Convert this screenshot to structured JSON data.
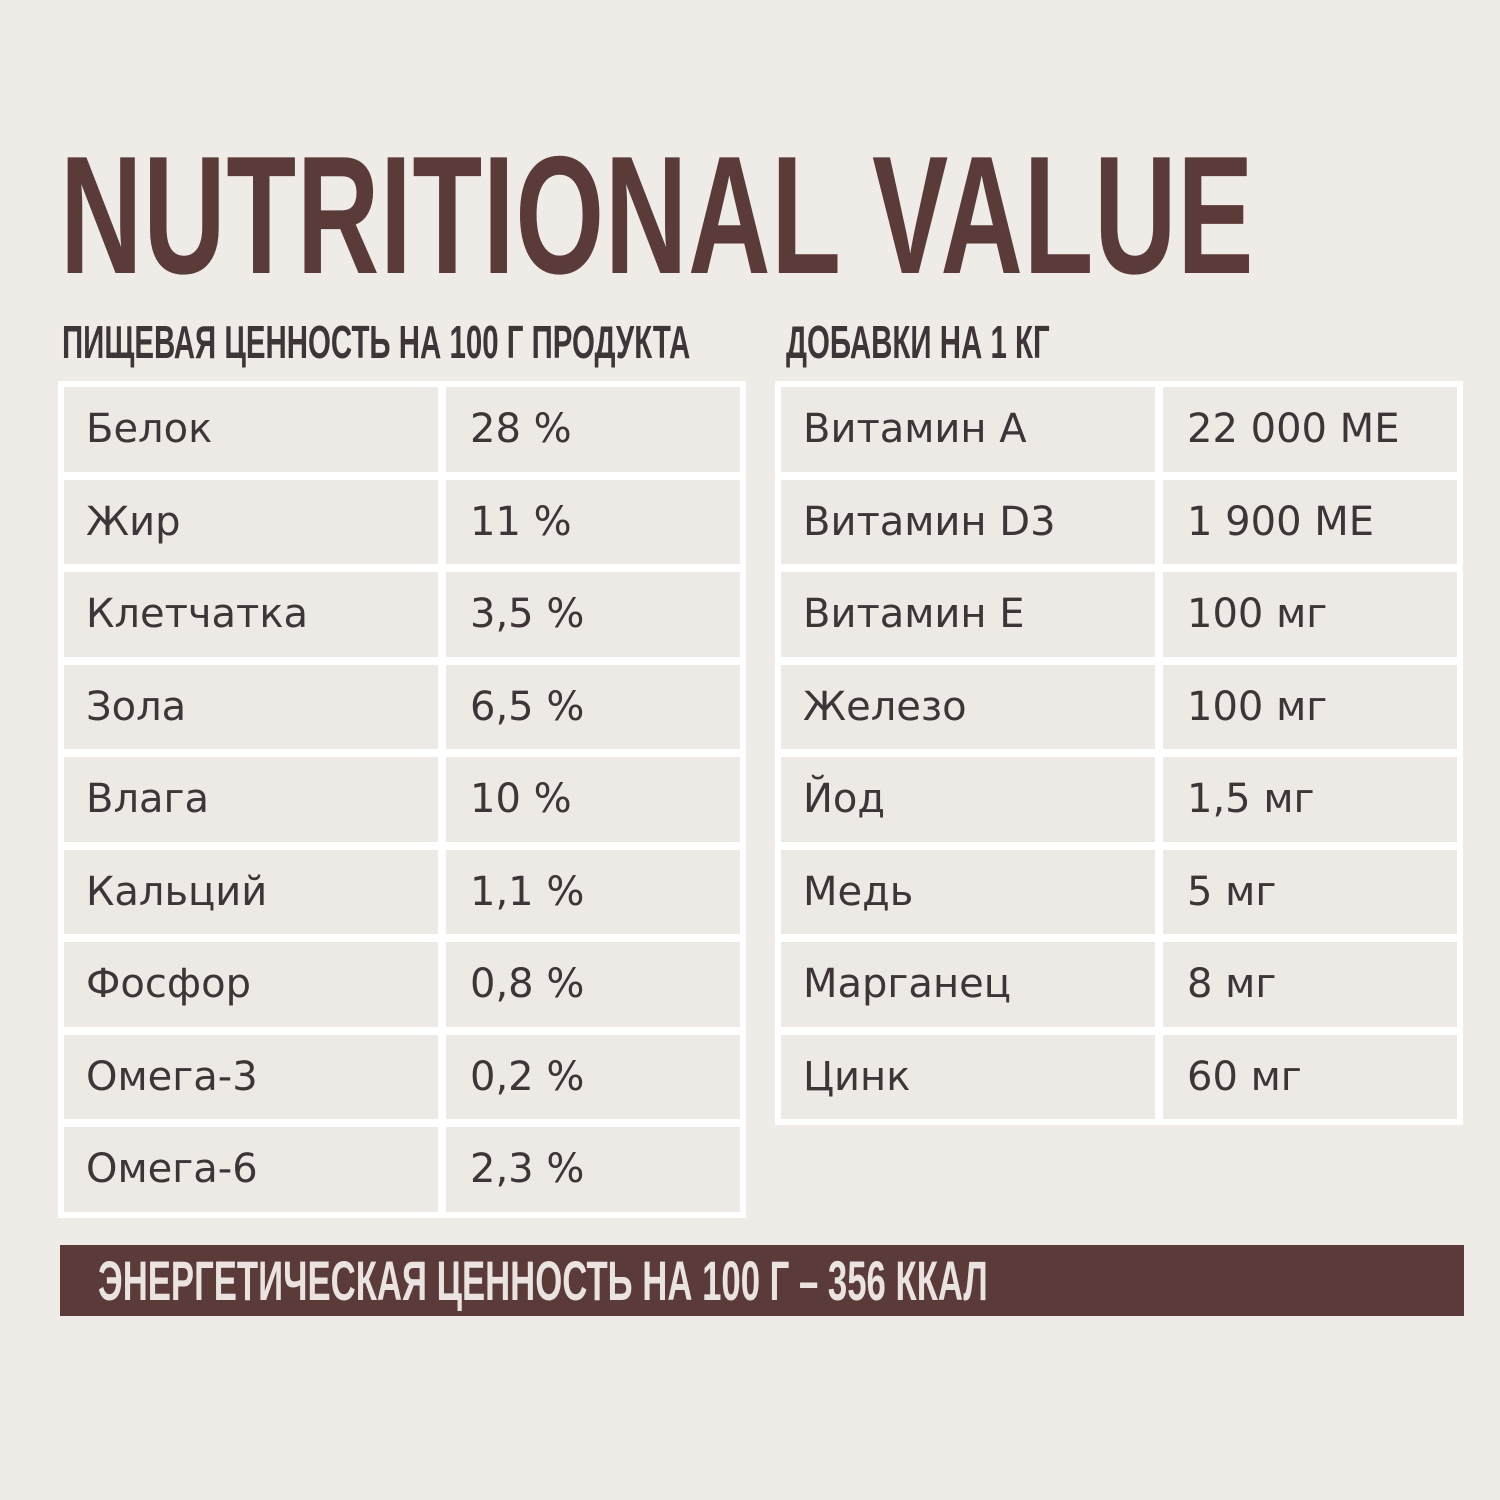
{
  "title": "NUTRITIONAL VALUE",
  "nutrition": {
    "heading": "ПИЩЕВАЯ ЦЕННОСТЬ НА 100 Г ПРОДУКТА",
    "rows": [
      {
        "name": "Белок",
        "value": "28 %"
      },
      {
        "name": "Жир",
        "value": "11 %"
      },
      {
        "name": "Клетчатка",
        "value": "3,5 %"
      },
      {
        "name": "Зола",
        "value": "6,5 %"
      },
      {
        "name": "Влага",
        "value": "10 %"
      },
      {
        "name": "Кальций",
        "value": "1,1 %"
      },
      {
        "name": "Фосфор",
        "value": "0,8 %"
      },
      {
        "name": "Омега-3",
        "value": "0,2 %"
      },
      {
        "name": "Омега-6",
        "value": "2,3 %"
      }
    ]
  },
  "additives": {
    "heading": "ДОБАВКИ  НА 1 КГ",
    "rows": [
      {
        "name": "Витамин А",
        "value": "22 000 МЕ"
      },
      {
        "name": "Витамин D3",
        "value": "1 900 МЕ"
      },
      {
        "name": "Витамин Е",
        "value": "100 мг"
      },
      {
        "name": "Железо",
        "value": "100 мг"
      },
      {
        "name": "Йод",
        "value": "1,5 мг"
      },
      {
        "name": "Медь",
        "value": "5 мг"
      },
      {
        "name": "Марганец",
        "value": "8 мг"
      },
      {
        "name": "Цинк",
        "value": "60 мг"
      }
    ]
  },
  "energy": "ЭНЕРГЕТИЧЕСКАЯ ЦЕННОСТЬ НА 100 Г – 356 ККАЛ"
}
